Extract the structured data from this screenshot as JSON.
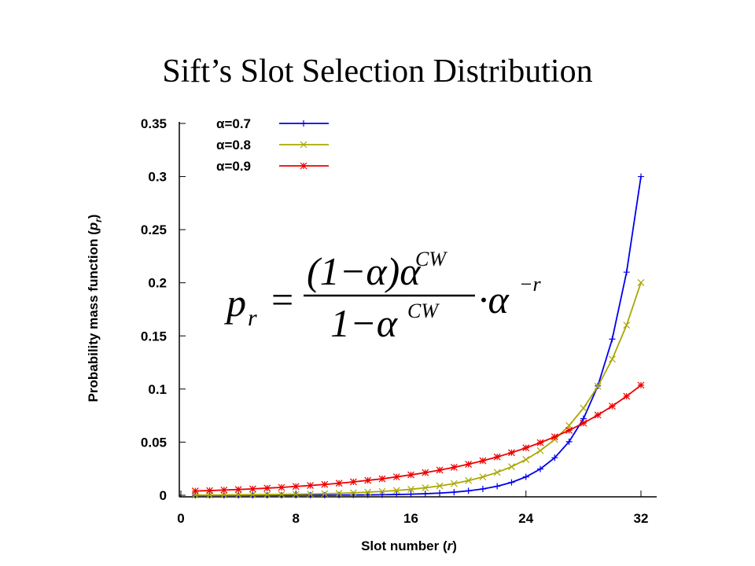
{
  "chart_data": {
    "type": "line",
    "title": "Sift’s Slot Selection Distribution",
    "xlabel": {
      "text": "Slot number (",
      "var": "r",
      "close": ")"
    },
    "ylabel": {
      "text": "Probability mass function (",
      "var": "p",
      "sub": "r",
      "close": ")"
    },
    "formula": {
      "lhs": "p",
      "lhs_sub": "r",
      "eq": "=",
      "num": "(1−α)α",
      "num_sup": "CW",
      "den": "1−α",
      "den_sup": "CW",
      "tail": "·α",
      "tail_sup": "−r"
    },
    "x": [
      1,
      2,
      3,
      4,
      5,
      6,
      7,
      8,
      9,
      10,
      11,
      12,
      13,
      14,
      15,
      16,
      17,
      18,
      19,
      20,
      21,
      22,
      23,
      24,
      25,
      26,
      27,
      28,
      29,
      30,
      31,
      32
    ],
    "series": [
      {
        "name": "α=0.7",
        "color": "#0000ee",
        "marker": "+",
        "values": [
          4.7e-06,
          6.8e-06,
          9.7e-06,
          1.38e-05,
          1.97e-05,
          2.82e-05,
          4.02e-05,
          5.75e-05,
          8.21e-05,
          0.0001173,
          0.0001676,
          0.0002394,
          0.000342,
          0.0004885,
          0.0006979,
          0.000997,
          0.0014243,
          0.0020347,
          0.0029067,
          0.0041524,
          0.005932,
          0.0084743,
          0.0121061,
          0.0172944,
          0.0247063,
          0.0352947,
          0.050421,
          0.07203,
          0.1029,
          0.147,
          0.21,
          0.3
        ]
      },
      {
        "name": "α=0.8",
        "color": "#a8a800",
        "marker": "x",
        "values": [
          0.0002,
          0.0002,
          0.0003,
          0.0004,
          0.0005,
          0.0006,
          0.0008,
          0.0009,
          0.0012,
          0.0015,
          0.0018,
          0.0023,
          0.0029,
          0.0036,
          0.0045,
          0.0056,
          0.007,
          0.0088,
          0.011,
          0.0138,
          0.0172,
          0.0215,
          0.0269,
          0.0336,
          0.042,
          0.0525,
          0.0656,
          0.082,
          0.1025,
          0.1281,
          0.1601,
          0.2002
        ]
      },
      {
        "name": "α=0.9",
        "color": "#ee0000",
        "marker": "*",
        "values": [
          0.004,
          0.0044,
          0.0049,
          0.0054,
          0.006,
          0.0067,
          0.0074,
          0.0083,
          0.0092,
          0.0102,
          0.0113,
          0.0126,
          0.014,
          0.0155,
          0.0173,
          0.0192,
          0.0213,
          0.0237,
          0.0263,
          0.0292,
          0.0325,
          0.0361,
          0.0401,
          0.0446,
          0.0495,
          0.055,
          0.0611,
          0.0679,
          0.0755,
          0.0839,
          0.0932,
          0.1036
        ]
      }
    ],
    "xlim": [
      0,
      32
    ],
    "xticks": [
      0,
      8,
      16,
      24,
      32
    ],
    "ylim": [
      0,
      0.35
    ],
    "yticks": [
      0,
      0.05,
      0.1,
      0.15,
      0.2,
      0.25,
      0.3,
      0.35
    ],
    "legend": "top-left"
  }
}
